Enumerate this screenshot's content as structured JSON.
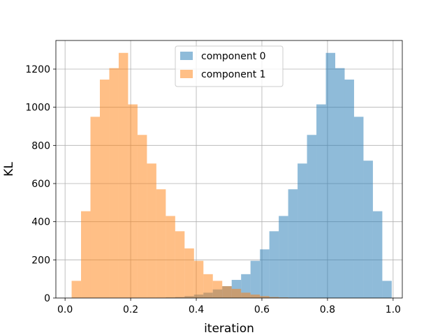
{
  "chart_data": {
    "type": "bar",
    "xlabel": "iteration",
    "ylabel": "KL",
    "xlim": [
      -0.028,
      1.028
    ],
    "ylim": [
      0,
      1350
    ],
    "xticks": [
      0.0,
      0.2,
      0.4,
      0.6,
      0.8,
      1.0
    ],
    "xtick_labels": [
      "0.0",
      "0.2",
      "0.4",
      "0.6",
      "0.8",
      "1.0"
    ],
    "yticks": [
      0,
      200,
      400,
      600,
      800,
      1000,
      1200
    ],
    "ytick_labels": [
      "0",
      "200",
      "400",
      "600",
      "800",
      "1000",
      "1200"
    ],
    "grid": true,
    "legend": "top-center",
    "series": [
      {
        "name": "component 0",
        "color": "#1f77b4",
        "opacity": 0.5,
        "bin_start": 0.02,
        "bin_width": 0.0287,
        "values": [
          0,
          0,
          0,
          0,
          0,
          0,
          0,
          0,
          0,
          1,
          3,
          5,
          10,
          18,
          28,
          45,
          62,
          95,
          125,
          195,
          255,
          350,
          430,
          570,
          705,
          855,
          1015,
          1285,
          1205,
          1145,
          950,
          720,
          455,
          90
        ]
      },
      {
        "name": "component 1",
        "color": "#ff7f0e",
        "opacity": 0.5,
        "bin_start": 0.02,
        "bin_width": 0.0287,
        "values": [
          90,
          455,
          950,
          1145,
          1205,
          1285,
          1015,
          855,
          705,
          570,
          430,
          350,
          260,
          195,
          125,
          90,
          62,
          48,
          28,
          18,
          10,
          5,
          3,
          1,
          0,
          0,
          0,
          0,
          0,
          0,
          0,
          0,
          0,
          0
        ]
      }
    ]
  }
}
